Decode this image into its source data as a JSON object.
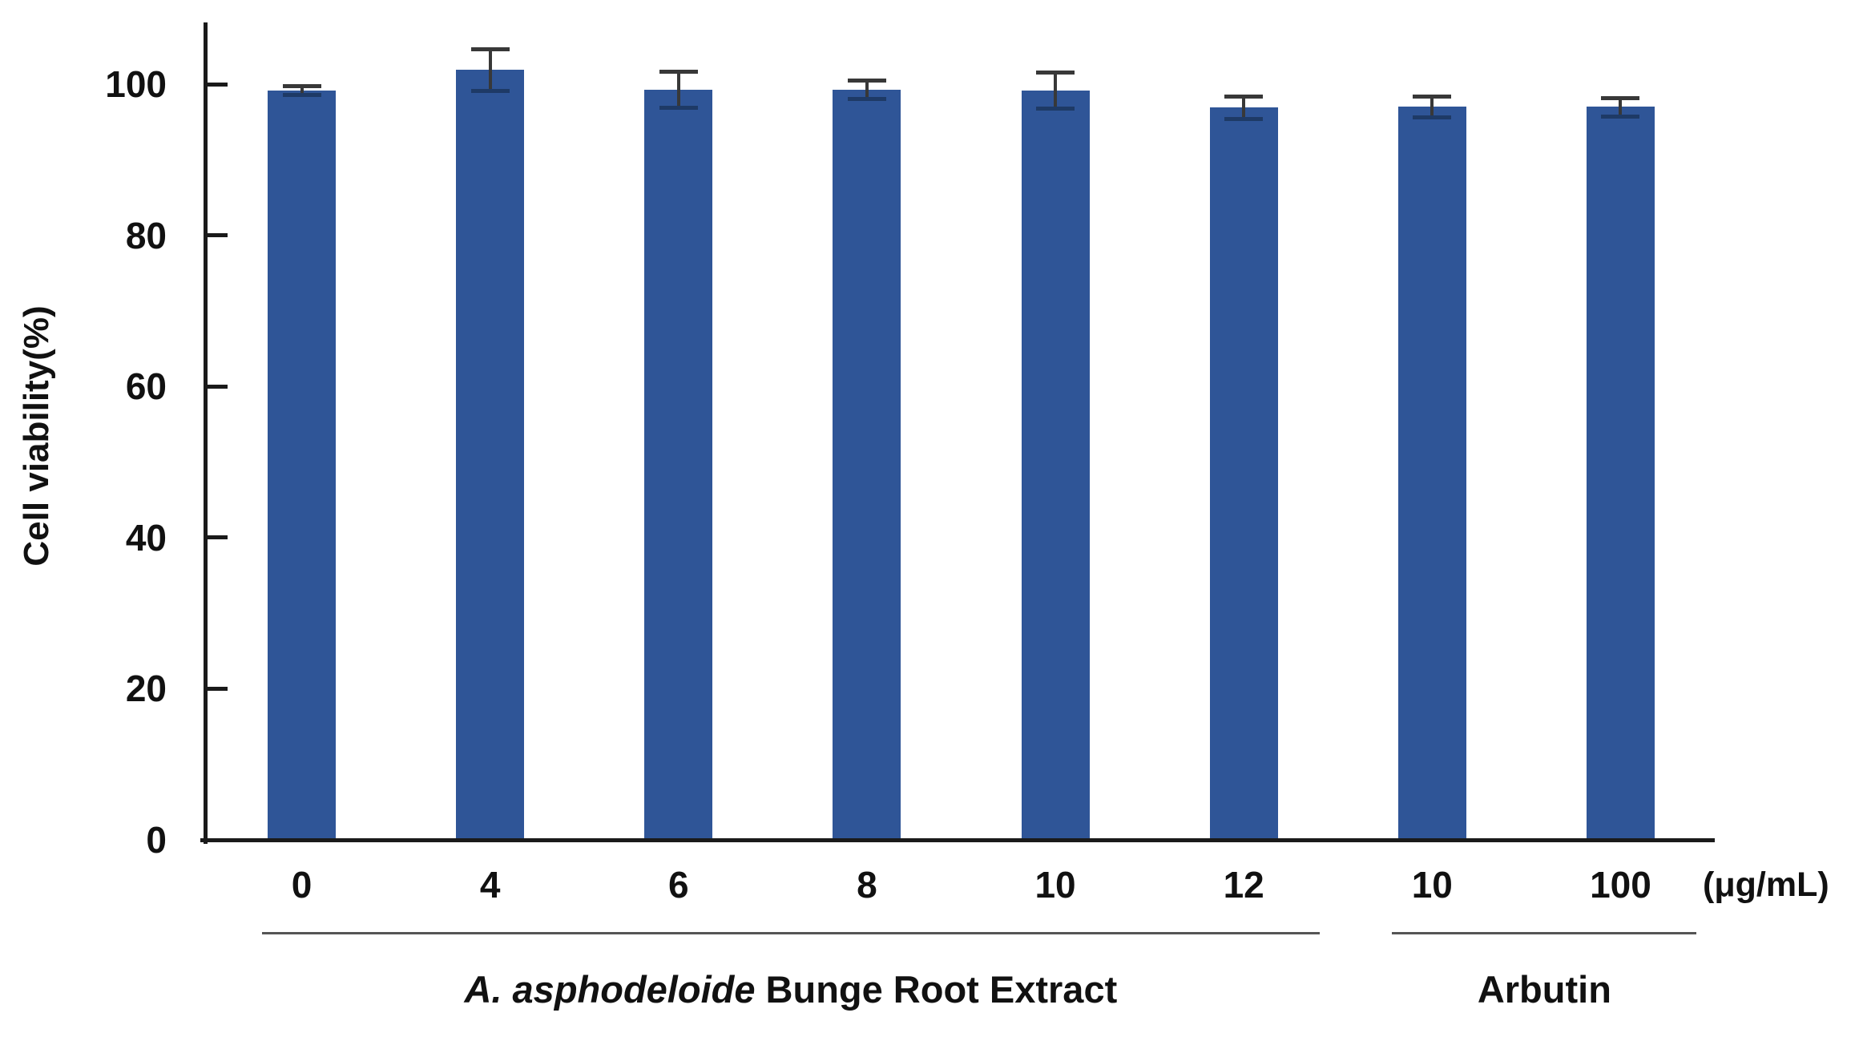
{
  "chart_data": {
    "type": "bar",
    "title": "",
    "ylabel": "Cell viability(%)",
    "xlabel": "",
    "unit_label": "(μg/mL)",
    "ylim": [
      0,
      108
    ],
    "yticks": [
      0,
      20,
      40,
      60,
      80,
      100
    ],
    "grid": false,
    "legend": "none",
    "bar_color": "#2F5597",
    "error_bar_color": "#383838",
    "error_cap_on_bar_color": "#1E3A66",
    "axis_color": "#1a1a1a",
    "groups": [
      {
        "label_italic": "A. asphodeloide",
        "label_regular": " Bunge Root Extract",
        "categories": [
          "0",
          "4",
          "6",
          "8",
          "10",
          "12"
        ]
      },
      {
        "label_italic": "",
        "label_regular": "Arbutin",
        "categories": [
          "10",
          "100"
        ]
      }
    ],
    "categories": [
      "0",
      "4",
      "6",
      "8",
      "10",
      "12",
      "10",
      "100"
    ],
    "series": [
      {
        "name": "Cell viability (%)",
        "values": [
          99.2,
          101.9,
          99.3,
          99.3,
          99.2,
          96.9,
          97.0,
          97.0
        ],
        "errors": [
          0.6,
          2.8,
          2.4,
          1.2,
          2.4,
          1.5,
          1.4,
          1.2
        ]
      }
    ]
  }
}
